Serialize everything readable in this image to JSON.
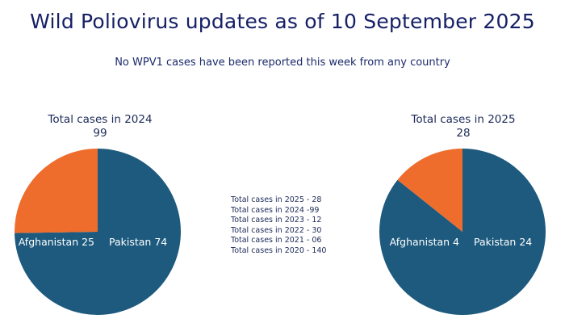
{
  "title": "Wild Poliovirus updates as of 10 September 2025",
  "subtitle": "No WPV1 cases have been reported this week from any country",
  "colors": {
    "pakistan": "#1d5a7e",
    "afghanistan": "#ee6d2c",
    "title": "#162066"
  },
  "chart_data": [
    {
      "type": "pie",
      "title": "Total cases in 2024",
      "total": "99",
      "slices": [
        {
          "label": "Afghanistan 25",
          "name": "Afghanistan",
          "value": 25
        },
        {
          "label": "Pakistan 74",
          "name": "Pakistan",
          "value": 74
        }
      ]
    },
    {
      "type": "pie",
      "title": "Total cases in 2025",
      "total": "28",
      "slices": [
        {
          "label": "Afghanistan 4",
          "name": "Afghanistan",
          "value": 4
        },
        {
          "label": "Pakistan 24",
          "name": "Pakistan",
          "value": 24
        }
      ]
    }
  ],
  "totals_list": [
    "Total cases in 2025 - 28",
    "Total cases in 2024 -99",
    "Total cases in 2023 - 12",
    "Total cases in 2022 - 30",
    "Total cases in 2021 - 06",
    "Total cases in 2020 - 140"
  ]
}
